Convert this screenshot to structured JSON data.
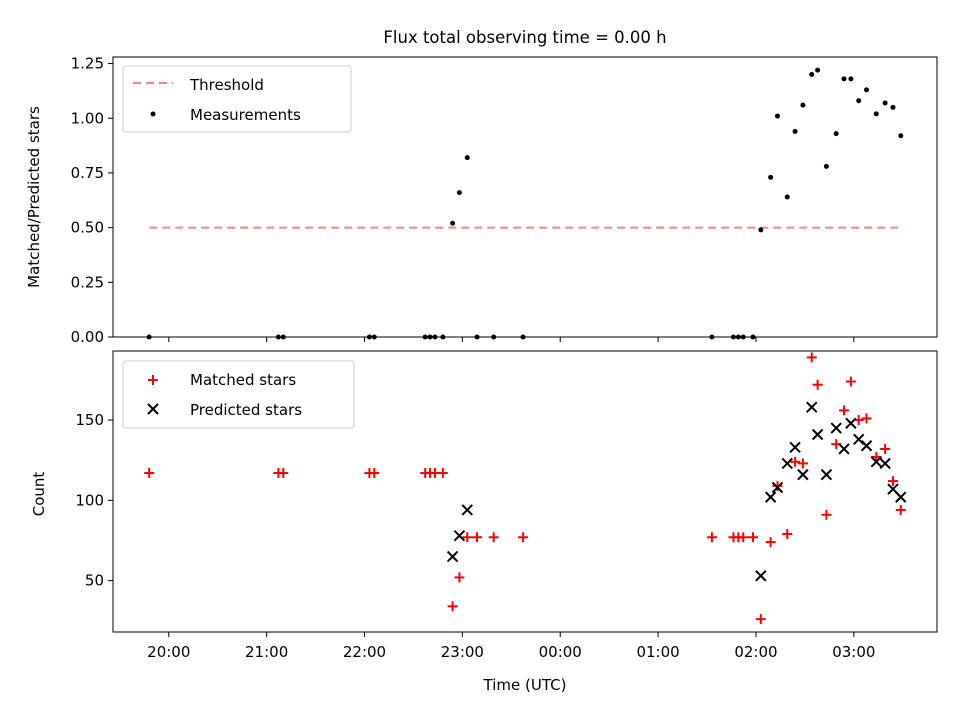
{
  "title": "Flux total observing time = 0.00 h",
  "xlabel": "Time (UTC)",
  "xtick_labels": [
    "20:00",
    "21:00",
    "22:00",
    "23:00",
    "00:00",
    "01:00",
    "02:00",
    "03:00"
  ],
  "colors": {
    "threshold": "#ff7f7f",
    "measurements": "#000000",
    "matched": "#ff0000",
    "predicted": "#000000"
  },
  "chart_data": [
    {
      "type": "scatter",
      "ylabel": "Matched/Predicted stars",
      "ylim": [
        0,
        1.28
      ],
      "yticks": [
        0,
        0.25,
        0.5,
        0.75,
        1.0,
        1.25
      ],
      "ytick_labels": [
        "0.00",
        "0.25",
        "0.50",
        "0.75",
        "1.00",
        "1.25"
      ],
      "legend": {
        "position": "upper left",
        "entries": [
          "Threshold",
          "Measurements"
        ]
      },
      "threshold": {
        "name": "Threshold",
        "value": 0.5,
        "x_range": [
          19.8,
          27.5
        ]
      },
      "series": [
        {
          "name": "Measurements",
          "x": [
            19.8,
            21.12,
            21.17,
            22.05,
            22.1,
            22.62,
            22.67,
            22.72,
            22.8,
            22.9,
            22.97,
            23.05,
            23.15,
            23.32,
            23.62,
            25.55,
            25.77,
            25.82,
            25.87,
            25.97,
            26.05,
            26.15,
            26.22,
            26.32,
            26.4,
            26.48,
            26.57,
            26.63,
            26.72,
            26.82,
            26.9,
            26.97,
            27.05,
            27.13,
            27.23,
            27.32,
            27.4,
            27.48
          ],
          "y": [
            0.0,
            0.0,
            0.0,
            0.0,
            0.0,
            0.0,
            0.0,
            0.0,
            0.0,
            0.52,
            0.66,
            0.82,
            0.0,
            0.0,
            0.0,
            0.0,
            0.0,
            0.0,
            0.0,
            0.0,
            0.49,
            0.73,
            1.01,
            0.64,
            0.94,
            1.06,
            1.2,
            1.22,
            0.78,
            0.93,
            1.18,
            1.18,
            1.08,
            1.13,
            1.02,
            1.07,
            1.05,
            0.92
          ]
        }
      ]
    },
    {
      "type": "scatter",
      "ylabel": "Count",
      "ylim": [
        18,
        193
      ],
      "yticks": [
        50,
        100,
        150
      ],
      "ytick_labels": [
        "50",
        "100",
        "150"
      ],
      "legend": {
        "position": "upper left",
        "entries": [
          "Matched stars",
          "Predicted stars"
        ]
      },
      "series": [
        {
          "name": "Matched stars",
          "marker": "+",
          "x": [
            19.8,
            21.12,
            21.17,
            22.05,
            22.1,
            22.62,
            22.67,
            22.72,
            22.8,
            22.9,
            22.97,
            23.05,
            23.15,
            23.32,
            23.62,
            25.55,
            25.77,
            25.82,
            25.87,
            25.97,
            26.05,
            26.15,
            26.22,
            26.32,
            26.4,
            26.48,
            26.57,
            26.63,
            26.72,
            26.82,
            26.9,
            26.97,
            27.05,
            27.13,
            27.23,
            27.32,
            27.4,
            27.48
          ],
          "y": [
            117,
            117,
            117,
            117,
            117,
            117,
            117,
            117,
            117,
            34,
            52,
            77,
            77,
            77,
            77,
            77,
            77,
            77,
            77,
            77,
            26,
            74,
            109,
            79,
            124,
            123,
            189,
            172,
            91,
            135,
            156,
            174,
            150,
            151,
            127,
            132,
            112,
            94
          ]
        },
        {
          "name": "Predicted stars",
          "marker": "x",
          "x": [
            22.9,
            22.97,
            23.05,
            26.05,
            26.15,
            26.22,
            26.32,
            26.4,
            26.48,
            26.57,
            26.63,
            26.72,
            26.82,
            26.9,
            26.97,
            27.05,
            27.13,
            27.23,
            27.32,
            27.4,
            27.48
          ],
          "y": [
            65,
            78,
            94,
            53,
            102,
            108,
            123,
            133,
            116,
            158,
            141,
            116,
            145,
            132,
            148,
            138,
            134,
            124,
            123,
            107,
            102
          ]
        }
      ]
    }
  ]
}
